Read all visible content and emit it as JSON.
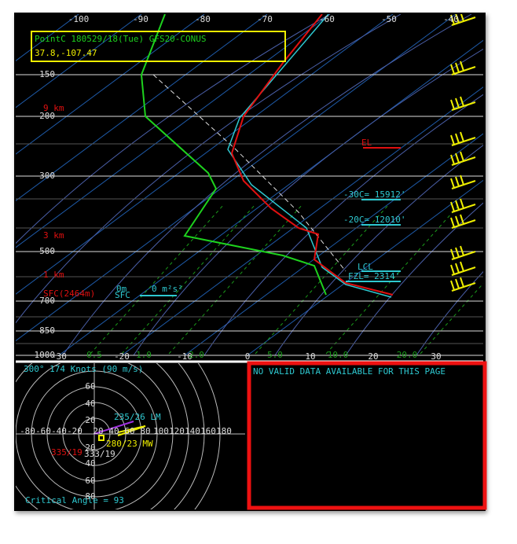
{
  "skewt": {
    "title_line1": "PointC 180529/18(Tue) GFS20-CONUS",
    "title_line2": "37.8,-107.47",
    "top_temps": [
      "-100",
      "-90",
      "-80",
      "-70",
      "-60",
      "-50",
      "-40"
    ],
    "pressures": [
      "150",
      "200",
      "300",
      "500",
      "700",
      "850",
      "1000"
    ],
    "heights": [
      "9 km",
      "3 km",
      "1 km",
      "SFC(2464m)"
    ],
    "bottom_temps": [
      "-30",
      "-20",
      "-10",
      "0",
      "10",
      "20",
      "30"
    ],
    "mixing_ratios": [
      "0.5",
      "1.0",
      "2.0",
      "5.0",
      "10.0",
      "20.0"
    ],
    "annotations": {
      "el": "EL",
      "minus30": "-30C= 15912'",
      "minus20": "-20C= 12010'",
      "lcl": "LCL",
      "fzl": "FZL= 2314'",
      "sfc_m": "0m",
      "sfc": "SFC",
      "helicity": "0 m²s²"
    }
  },
  "hodograph": {
    "header": "300°  174 Knots (90 m/s)",
    "rings_up": [
      "60",
      "40",
      "20"
    ],
    "rings_down": [
      "20",
      "40",
      "60",
      "80"
    ],
    "x_labels": [
      "-80",
      "-60",
      "-40",
      "-20",
      "20",
      "40",
      "60",
      "80",
      "100",
      "120",
      "140",
      "160",
      "180"
    ],
    "lm": "235/26 LM",
    "mw": "280/23 MW",
    "rm_red": "335/19",
    "rm_white": "333/19",
    "critical_angle": "Critical Angle = 93"
  },
  "panel": {
    "message": "NO VALID DATA AVAILABLE FOR THIS PAGE"
  }
}
